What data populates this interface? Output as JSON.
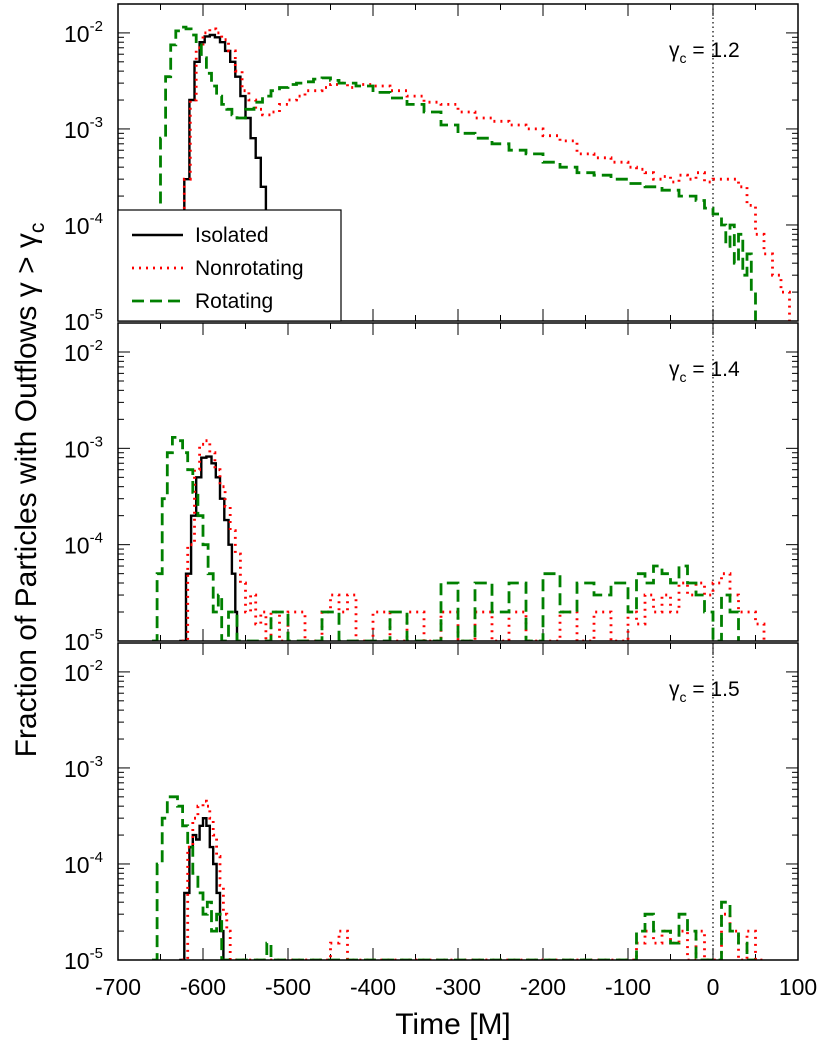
{
  "chart_data": {
    "type": "line",
    "layout": "3 vertically stacked panels sharing the x axis",
    "xlabel": "Time [M]",
    "ylabel": "Fraction of Particles with Outflows γ > γ",
    "ylabel_subscript": "c",
    "xlim": [
      -700,
      100
    ],
    "x_ticks": [
      "-700",
      "-600",
      "-500",
      "-400",
      "-300",
      "-200",
      "-100",
      "0",
      "100"
    ],
    "x_tick_values": [
      -700,
      -600,
      -500,
      -400,
      -300,
      -200,
      -100,
      0,
      100
    ],
    "y_scale": "log",
    "ylim": [
      1e-05,
      0.02
    ],
    "y_tick_base": "10",
    "y_tick_exponents": [
      "-5",
      "-4",
      "-3",
      "-2"
    ],
    "vertical_reference_line": {
      "x": 0,
      "style": "dotted",
      "color": "#000000"
    },
    "legend": {
      "placement": "lower-left of top panel",
      "entries": [
        "Isolated",
        "Nonrotating",
        "Rotating"
      ]
    },
    "series_styles": {
      "Isolated": {
        "color": "#000000",
        "dash": "solid"
      },
      "Nonrotating": {
        "color": "#ff0000",
        "dash": "dotted"
      },
      "Rotating": {
        "color": "#008000",
        "dash": "dashed"
      }
    },
    "panels": [
      {
        "annotation_symbol": "γ",
        "annotation_sub": "c",
        "annotation_value": " = 1.2",
        "series": [
          {
            "name": "Isolated",
            "x": [
              -630,
              -622,
              -616,
              -610,
              -604,
              -598,
              -592,
              -586,
              -580,
              -574,
              -568,
              -562,
              -556,
              -550,
              -544,
              -538,
              -532,
              -526
            ],
            "y": [
              1e-05,
              0.0003,
              0.002,
              0.005,
              0.008,
              0.0092,
              0.0095,
              0.009,
              0.008,
              0.0065,
              0.005,
              0.0035,
              0.0022,
              0.0013,
              0.0008,
              0.0005,
              0.00025,
              0.00012
            ]
          },
          {
            "name": "Nonrotating",
            "x": [
              -630,
              -622,
              -615,
              -608,
              -600,
              -592,
              -585,
              -578,
              -570,
              -562,
              -554,
              -546,
              -538,
              -530,
              -520,
              -510,
              -500,
              -490,
              -480,
              -470,
              -460,
              -450,
              -440,
              -430,
              -420,
              -400,
              -380,
              -360,
              -340,
              -320,
              -300,
              -280,
              -260,
              -240,
              -220,
              -200,
              -180,
              -160,
              -140,
              -120,
              -100,
              -90,
              -80,
              -70,
              -60,
              -50,
              -40,
              -30,
              -20,
              -10,
              0,
              10,
              20,
              30,
              40,
              50,
              60,
              70,
              80,
              90
            ],
            "y": [
              1e-05,
              0.0003,
              0.002,
              0.007,
              0.01,
              0.011,
              0.01,
              0.0085,
              0.0065,
              0.004,
              0.0025,
              0.002,
              0.0016,
              0.0014,
              0.0015,
              0.0018,
              0.002,
              0.0022,
              0.0025,
              0.0025,
              0.0027,
              0.0029,
              0.003,
              0.0027,
              0.0029,
              0.0028,
              0.0025,
              0.0022,
              0.0019,
              0.0018,
              0.0015,
              0.0013,
              0.0012,
              0.0011,
              0.001,
              0.00085,
              0.00075,
              0.00055,
              0.0005,
              0.00045,
              0.0004,
              0.00038,
              0.00035,
              0.0003,
              0.00032,
              0.00028,
              0.00033,
              0.0003,
              0.00035,
              0.00028,
              0.0003,
              0.0003,
              0.0003,
              0.00025,
              0.00016,
              8e-05,
              5e-05,
              3e-05,
              2e-05,
              1e-05
            ]
          },
          {
            "name": "Rotating",
            "x": [
              -660,
              -655,
              -650,
              -644,
              -638,
              -632,
              -626,
              -620,
              -614,
              -608,
              -602,
              -596,
              -590,
              -584,
              -578,
              -572,
              -566,
              -560,
              -550,
              -540,
              -530,
              -520,
              -510,
              -500,
              -490,
              -480,
              -470,
              -460,
              -450,
              -440,
              -420,
              -400,
              -380,
              -360,
              -340,
              -320,
              -300,
              -280,
              -260,
              -240,
              -220,
              -200,
              -180,
              -160,
              -140,
              -120,
              -100,
              -80,
              -60,
              -40,
              -20,
              -10,
              0,
              10,
              15,
              20,
              25,
              30,
              35,
              40,
              45,
              50
            ],
            "y": [
              1e-05,
              0.0001,
              0.0008,
              0.0035,
              0.0075,
              0.0105,
              0.0115,
              0.011,
              0.0095,
              0.0075,
              0.0055,
              0.0038,
              0.0028,
              0.0022,
              0.0018,
              0.0016,
              0.0014,
              0.0013,
              0.0016,
              0.0019,
              0.0022,
              0.0025,
              0.0027,
              0.0029,
              0.003,
              0.0031,
              0.0033,
              0.0034,
              0.0032,
              0.003,
              0.0028,
              0.0024,
              0.0021,
              0.0018,
              0.0015,
              0.0011,
              0.0009,
              0.0008,
              0.0007,
              0.0006,
              0.00055,
              0.00045,
              0.0004,
              0.00035,
              0.00033,
              0.0003,
              0.00027,
              0.00025,
              0.00023,
              0.0002,
              0.00018,
              0.00015,
              0.00013,
              0.0001,
              6e-05,
              0.0001,
              4e-05,
              8e-05,
              3e-05,
              5e-05,
              2e-05,
              1e-05
            ]
          }
        ]
      },
      {
        "annotation_symbol": "γ",
        "annotation_sub": "c",
        "annotation_value": " = 1.4",
        "series": [
          {
            "name": "Isolated",
            "x": [
              -628,
              -620,
              -614,
              -608,
              -602,
              -596,
              -590,
              -585,
              -580,
              -575,
              -570,
              -566,
              -562,
              -560
            ],
            "y": [
              1e-05,
              5e-05,
              0.0002,
              0.0005,
              0.0008,
              0.00082,
              0.0007,
              0.0005,
              0.0003,
              0.00018,
              0.0001,
              5e-05,
              2e-05,
              1e-05
            ]
          },
          {
            "name": "Nonrotating",
            "x": [
              -625,
              -618,
              -610,
              -604,
              -598,
              -592,
              -586,
              -580,
              -574,
              -568,
              -562,
              -556,
              -550,
              -544,
              -538,
              -532,
              -526,
              -520,
              -510,
              -500,
              -480,
              -460,
              -450,
              -440,
              -430,
              -420,
              -400,
              -380,
              -360,
              -340,
              -320,
              -300,
              -280,
              -260,
              -240,
              -220,
              -200,
              -180,
              -160,
              -140,
              -120,
              -100,
              -90,
              -80,
              -70,
              -60,
              -50,
              -40,
              -30,
              -20,
              -10,
              0,
              10,
              20,
              30,
              40,
              50,
              60
            ],
            "y": [
              1e-05,
              0.0001,
              0.0006,
              0.0011,
              0.0012,
              0.0009,
              0.0006,
              0.0004,
              0.00025,
              0.00014,
              8e-05,
              4e-05,
              2e-05,
              3e-05,
              1.5e-05,
              2e-05,
              1e-05,
              2e-05,
              1e-05,
              2e-05,
              1e-05,
              2e-05,
              3e-05,
              2e-05,
              3e-05,
              1e-05,
              2e-05,
              1e-05,
              2e-05,
              1e-05,
              2e-05,
              1e-05,
              2e-05,
              1e-05,
              2e-05,
              1e-05,
              1e-05,
              2e-05,
              1e-05,
              2e-05,
              1e-05,
              2e-05,
              1.5e-05,
              3e-05,
              2e-05,
              3e-05,
              2e-05,
              4e-05,
              3e-05,
              4e-05,
              3e-05,
              4e-05,
              5e-05,
              3e-05,
              2e-05,
              2e-05,
              1.5e-05,
              1e-05
            ]
          },
          {
            "name": "Rotating",
            "x": [
              -660,
              -654,
              -648,
              -642,
              -636,
              -630,
              -624,
              -618,
              -612,
              -606,
              -600,
              -594,
              -588,
              -582,
              -578,
              -570,
              -560,
              -540,
              -520,
              -500,
              -480,
              -460,
              -440,
              -420,
              -400,
              -380,
              -360,
              -340,
              -320,
              -300,
              -280,
              -260,
              -240,
              -220,
              -200,
              -180,
              -160,
              -140,
              -120,
              -100,
              -90,
              -80,
              -70,
              -60,
              -50,
              -40,
              -30,
              -20,
              -10,
              0,
              10,
              20,
              30
            ],
            "y": [
              1e-05,
              5e-05,
              0.0003,
              0.0009,
              0.0013,
              0.0012,
              0.0009,
              0.0006,
              0.00035,
              0.0002,
              0.0001,
              5e-05,
              2e-05,
              3e-05,
              1e-05,
              2e-05,
              1e-05,
              1e-05,
              2e-05,
              1e-05,
              1e-05,
              2e-05,
              1e-05,
              1e-05,
              1e-05,
              2e-05,
              1e-05,
              1e-05,
              4e-05,
              1e-05,
              4e-05,
              2e-05,
              4e-05,
              1e-05,
              5e-05,
              2e-05,
              4e-05,
              3e-05,
              4e-05,
              2e-05,
              5e-05,
              4e-05,
              6e-05,
              5e-05,
              4e-05,
              6e-05,
              4e-05,
              3e-05,
              2e-05,
              1e-05,
              3e-05,
              2e-05,
              1e-05
            ]
          }
        ]
      },
      {
        "annotation_symbol": "γ",
        "annotation_sub": "c",
        "annotation_value": " = 1.5",
        "series": [
          {
            "name": "Isolated",
            "x": [
              -628,
              -622,
              -616,
              -612,
              -608,
              -604,
              -600,
              -596,
              -592,
              -588,
              -584,
              -580,
              -576
            ],
            "y": [
              1e-05,
              5e-05,
              0.00015,
              0.0002,
              0.00018,
              0.00025,
              0.0003,
              0.00025,
              0.00015,
              0.0001,
              5e-05,
              2e-05,
              1e-05
            ]
          },
          {
            "name": "Nonrotating",
            "x": [
              -625,
              -618,
              -612,
              -606,
              -600,
              -596,
              -592,
              -588,
              -584,
              -580,
              -576,
              -572,
              -568,
              -560,
              -540,
              -520,
              -500,
              -480,
              -460,
              -450,
              -440,
              -430,
              -420,
              -400,
              -300,
              -200,
              -100,
              -90,
              -80,
              -70,
              -60,
              -50,
              -40,
              -30,
              -20,
              -10,
              0,
              10,
              20,
              30,
              40,
              50,
              60
            ],
            "y": [
              1e-05,
              0.00015,
              0.0003,
              0.0004,
              0.00045,
              0.0004,
              0.0003,
              0.0002,
              0.00012,
              6e-05,
              3e-05,
              2e-05,
              1e-05,
              1e-05,
              1e-05,
              1e-05,
              1e-05,
              1e-05,
              1e-05,
              1.5e-05,
              2e-05,
              1e-05,
              1e-05,
              1e-05,
              1e-05,
              1e-05,
              1e-05,
              1.5e-05,
              2e-05,
              1.5e-05,
              2e-05,
              1.5e-05,
              2e-05,
              1e-05,
              2e-05,
              1e-05,
              1e-05,
              3e-05,
              2e-05,
              1e-05,
              2e-05,
              1e-05,
              1e-05
            ]
          },
          {
            "name": "Rotating",
            "x": [
              -660,
              -654,
              -648,
              -642,
              -636,
              -630,
              -624,
              -618,
              -612,
              -606,
              -600,
              -595,
              -590,
              -584,
              -578,
              -572,
              -566,
              -560,
              -540,
              -525,
              -520,
              -500,
              -300,
              -200,
              -100,
              -90,
              -80,
              -70,
              -60,
              -50,
              -40,
              -30,
              -20,
              -10,
              0,
              10,
              20,
              30,
              40,
              50
            ],
            "y": [
              1e-05,
              0.0001,
              0.0003,
              0.0005,
              0.0005,
              0.0004,
              0.00025,
              0.00015,
              8e-05,
              5e-05,
              3e-05,
              4e-05,
              2e-05,
              3e-05,
              1e-05,
              1e-05,
              1e-05,
              1e-05,
              1e-05,
              1.5e-05,
              1e-05,
              1e-05,
              1e-05,
              1e-05,
              1e-05,
              2e-05,
              3e-05,
              2e-05,
              2e-05,
              1.5e-05,
              3e-05,
              2e-05,
              1e-05,
              1e-05,
              1e-05,
              4e-05,
              2e-05,
              1.5e-05,
              1e-05,
              1e-05
            ]
          }
        ]
      }
    ]
  }
}
